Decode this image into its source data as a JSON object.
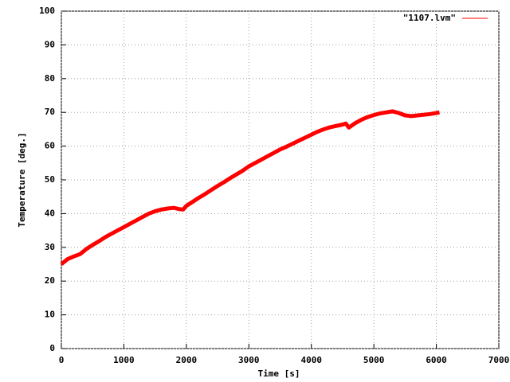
{
  "chart_data": {
    "type": "line",
    "xlabel": "Time [s]",
    "ylabel": "Temperature [deg.]",
    "x": [
      0,
      100,
      200,
      300,
      400,
      500,
      600,
      700,
      800,
      900,
      1000,
      1100,
      1200,
      1300,
      1400,
      1500,
      1600,
      1700,
      1800,
      1900,
      1950,
      2000,
      2100,
      2200,
      2300,
      2400,
      2500,
      2600,
      2700,
      2800,
      2900,
      3000,
      3100,
      3200,
      3300,
      3400,
      3500,
      3600,
      3700,
      3800,
      3900,
      4000,
      4100,
      4200,
      4300,
      4400,
      4500,
      4550,
      4600,
      4700,
      4800,
      4900,
      5000,
      5100,
      5200,
      5300,
      5400,
      5500,
      5600,
      5700,
      5800,
      5900,
      6000,
      6050
    ],
    "series": [
      {
        "name": "\"1107.lvm\"",
        "color": "#ff0000",
        "values": [
          25,
          26.5,
          27.3,
          28,
          29.5,
          30.7,
          31.8,
          33,
          34,
          35,
          36,
          37,
          38,
          39,
          40,
          40.7,
          41.2,
          41.5,
          41.7,
          41.3,
          41.2,
          42.3,
          43.5,
          44.7,
          45.8,
          47,
          48.2,
          49.3,
          50.5,
          51.6,
          52.7,
          54,
          55,
          56,
          57,
          58,
          59,
          59.8,
          60.7,
          61.6,
          62.5,
          63.4,
          64.3,
          65,
          65.6,
          66,
          66.4,
          66.7,
          65.5,
          66.8,
          67.8,
          68.6,
          69.2,
          69.7,
          70,
          70.3,
          69.8,
          69.1,
          68.9,
          69.1,
          69.3,
          69.5,
          69.8,
          70
        ]
      }
    ],
    "xlim": [
      0,
      7000
    ],
    "xticks": [
      0,
      1000,
      2000,
      3000,
      4000,
      5000,
      6000,
      7000
    ],
    "ylim": [
      0,
      100
    ],
    "yticks": [
      0,
      10,
      20,
      30,
      40,
      50,
      60,
      70,
      80,
      90,
      100
    ],
    "grid": true,
    "legend": "top-right"
  }
}
